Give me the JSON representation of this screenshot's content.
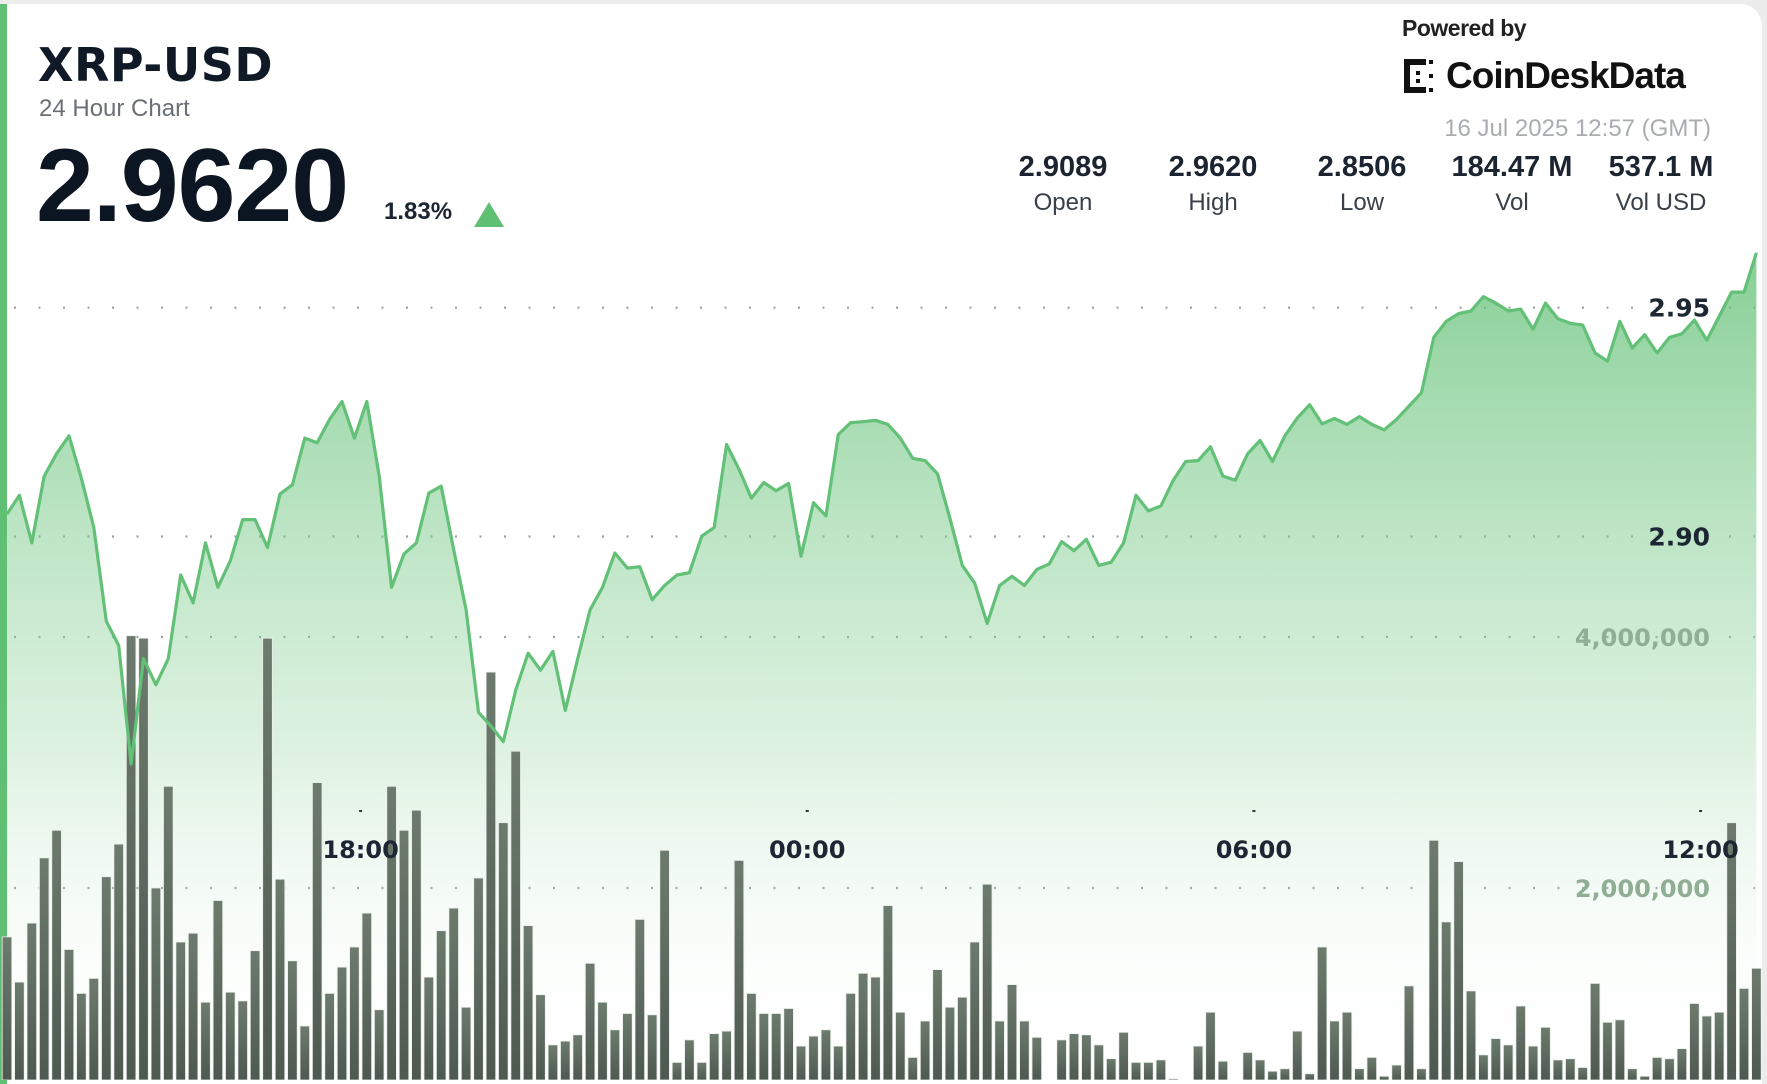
{
  "header": {
    "symbol": "XRP-USD",
    "subtitle": "24 Hour Chart",
    "price": "2.9620",
    "change_pct": "1.83%",
    "change_direction": "up",
    "powered_by": "Powered by",
    "brand": "CoinDeskData",
    "timestamp": "16 Jul 2025 12:57 (GMT)"
  },
  "stats": [
    {
      "value": "2.9089",
      "label": "Open"
    },
    {
      "value": "2.9620",
      "label": "High"
    },
    {
      "value": "2.8506",
      "label": "Low"
    },
    {
      "value": "184.47 M",
      "label": "Vol"
    },
    {
      "value": "537.1 M",
      "label": "Vol USD"
    }
  ],
  "colors": {
    "accent": "#5fbf73",
    "line": "#62c077",
    "volume_bar": "#5c6a5d",
    "text": "#0f1a26"
  },
  "chart_data": {
    "type": "line",
    "grid": true,
    "price_axis": {
      "ticks": [
        2.9,
        2.95
      ],
      "tick_labels": [
        "2.90",
        "2.95"
      ]
    },
    "volume_axis": {
      "ticks": [
        2000000,
        4000000
      ],
      "tick_labels": [
        "2,000,000",
        "4,000,000"
      ]
    },
    "x_ticks": [
      "18:00",
      "00:00",
      "06:00",
      "12:00"
    ],
    "x": [
      "13:15",
      "13:25",
      "13:35",
      "13:45",
      "13:55",
      "14:05",
      "14:15",
      "14:25",
      "14:35",
      "14:45",
      "14:55",
      "15:05",
      "15:15",
      "15:25",
      "15:35",
      "15:45",
      "15:55",
      "16:05",
      "16:15",
      "16:25",
      "16:35",
      "16:45",
      "16:55",
      "17:05",
      "17:15",
      "17:25",
      "17:35",
      "17:45",
      "17:55",
      "18:05",
      "18:15",
      "18:25",
      "18:35",
      "18:45",
      "18:55",
      "19:05",
      "19:15",
      "19:25",
      "19:35",
      "19:45",
      "19:55",
      "20:05",
      "20:15",
      "20:25",
      "20:35",
      "20:45",
      "20:55",
      "21:05",
      "21:15",
      "21:25",
      "21:35",
      "21:45",
      "21:55",
      "22:05",
      "22:15",
      "22:25",
      "22:35",
      "22:45",
      "22:55",
      "23:05",
      "23:15",
      "23:25",
      "23:35",
      "23:45",
      "23:55",
      "00:05",
      "00:15",
      "00:25",
      "00:35",
      "00:45",
      "00:55",
      "01:05",
      "01:15",
      "01:25",
      "01:35",
      "01:45",
      "01:55",
      "02:05",
      "02:15",
      "02:25",
      "02:35",
      "02:45",
      "02:55",
      "03:05",
      "03:15",
      "03:25",
      "03:35",
      "03:45",
      "03:55",
      "04:05",
      "04:15",
      "04:25",
      "04:35",
      "04:45",
      "04:55",
      "05:05",
      "05:15",
      "05:25",
      "05:35",
      "05:45",
      "05:55",
      "06:05",
      "06:15",
      "06:25",
      "06:35",
      "06:45",
      "06:55",
      "07:05",
      "07:15",
      "07:25",
      "07:35",
      "07:45",
      "07:55",
      "08:05",
      "08:15",
      "08:25",
      "08:35",
      "08:45",
      "08:55",
      "09:05",
      "09:15",
      "09:25",
      "09:35",
      "09:45",
      "09:55",
      "10:05",
      "10:15",
      "10:25",
      "10:35",
      "10:45",
      "10:55",
      "11:05",
      "11:15",
      "11:25",
      "11:35",
      "11:45",
      "11:55",
      "12:05",
      "12:15",
      "12:25",
      "12:35",
      "12:45"
    ],
    "series": [
      {
        "type": "area",
        "values": [
          2.9049,
          2.909,
          2.8986,
          2.9132,
          2.9181,
          2.922,
          2.9127,
          2.902,
          2.8815,
          2.8762,
          2.8503,
          2.8733,
          2.8676,
          2.8733,
          2.8916,
          2.8855,
          2.8986,
          2.8889,
          2.8947,
          2.9037,
          2.9037,
          2.8976,
          2.9093,
          2.9113,
          2.9215,
          2.9205,
          2.9256,
          2.9295,
          2.9215,
          2.9295,
          2.9132,
          2.8889,
          2.8962,
          2.8986,
          2.9095,
          2.911,
          2.8971,
          2.884,
          2.8616,
          2.8586,
          2.8552,
          2.8664,
          2.8745,
          2.8708,
          2.8749,
          2.862,
          2.8733,
          2.884,
          2.8889,
          2.8964,
          2.8931,
          2.8934,
          2.8862,
          2.8893,
          2.8916,
          2.8921,
          2.9001,
          2.902,
          2.9201,
          2.9147,
          2.9084,
          2.9118,
          2.91,
          2.9116,
          2.8957,
          2.9074,
          2.9045,
          2.9223,
          2.9249,
          2.9251,
          2.9254,
          2.9245,
          2.9215,
          2.9171,
          2.9166,
          2.9137,
          2.904,
          2.8937,
          2.8898,
          2.881,
          2.8893,
          2.8913,
          2.8893,
          2.8928,
          2.894,
          2.8989,
          2.8969,
          2.8994,
          2.8937,
          2.8944,
          2.8986,
          2.909,
          2.9056,
          2.9067,
          2.9123,
          2.9164,
          2.9166,
          2.9196,
          2.9132,
          2.9123,
          2.9181,
          2.921,
          2.9164,
          2.922,
          2.9259,
          2.9288,
          2.9246,
          2.9258,
          2.9245,
          2.9262,
          2.9245,
          2.9233,
          2.9256,
          2.9285,
          2.9314,
          2.9435,
          2.947,
          2.9487,
          2.9493,
          2.9524,
          2.951,
          2.9493,
          2.9497,
          2.9453,
          2.951,
          2.9476,
          2.9466,
          2.9462,
          2.9401,
          2.9383,
          2.947,
          2.9412,
          2.9441,
          2.9401,
          2.9435,
          2.9443,
          2.9473,
          2.9429,
          2.9481,
          2.9534,
          2.9534,
          2.962
        ]
      },
      {
        "type": "bar",
        "values": [
          1610000,
          1250000,
          1720000,
          2240000,
          2460000,
          1510000,
          1160000,
          1280000,
          2090000,
          2350000,
          4010000,
          3990000,
          2000000,
          2810000,
          1570000,
          1640000,
          1090000,
          1900000,
          1170000,
          1100000,
          1500000,
          3990000,
          2070000,
          1420000,
          900000,
          2840000,
          1160000,
          1370000,
          1530000,
          1800000,
          1030000,
          2810000,
          2460000,
          2620000,
          1290000,
          1660000,
          1840000,
          1050000,
          2080000,
          3720000,
          2520000,
          3090000,
          1700000,
          1150000,
          750000,
          780000,
          830000,
          1400000,
          1090000,
          870000,
          1000000,
          1750000,
          990000,
          2300000,
          610000,
          790000,
          610000,
          840000,
          860000,
          2220000,
          1160000,
          1000000,
          1000000,
          1040000,
          740000,
          820000,
          870000,
          740000,
          1160000,
          1320000,
          1290000,
          1860000,
          1010000,
          650000,
          940000,
          1350000,
          1050000,
          1130000,
          1570000,
          2030000,
          940000,
          1230000,
          940000,
          810000,
          350000,
          790000,
          840000,
          830000,
          750000,
          640000,
          850000,
          610000,
          610000,
          630000,
          480000,
          460000,
          740000,
          1010000,
          620000,
          460000,
          690000,
          630000,
          540000,
          560000,
          860000,
          520000,
          1530000,
          940000,
          1010000,
          560000,
          650000,
          500000,
          590000,
          1220000,
          560000,
          2380000,
          1730000,
          2210000,
          1180000,
          670000,
          800000,
          750000,
          1060000,
          740000,
          890000,
          630000,
          640000,
          570000,
          1240000,
          930000,
          950000,
          560000,
          500000,
          650000,
          640000,
          720000,
          1080000,
          980000,
          1010000,
          2520000,
          1200000,
          1360000
        ]
      }
    ]
  }
}
